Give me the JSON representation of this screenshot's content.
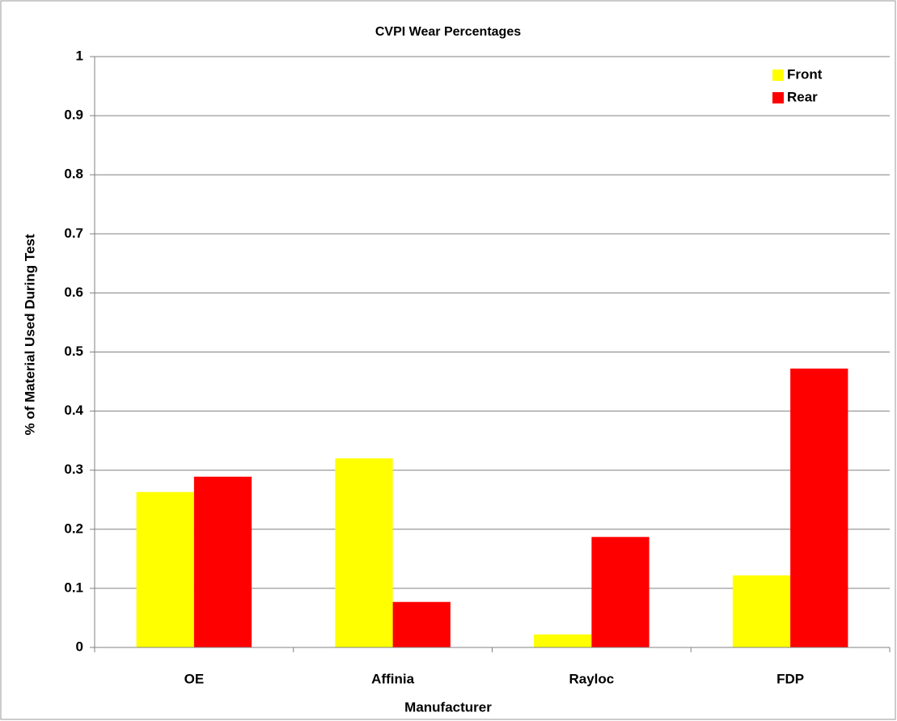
{
  "chart_data": {
    "type": "bar",
    "title": "CVPI Wear Percentages",
    "x_label": "Manufacturer",
    "y_label": "% of Material Used During Test",
    "categories": [
      "OE",
      "Affinia",
      "Rayloc",
      "FDP"
    ],
    "series": [
      {
        "name": "Front",
        "color": "#ffff00",
        "values": [
          0.263,
          0.32,
          0.022,
          0.122
        ]
      },
      {
        "name": "Rear",
        "color": "#ff0000",
        "values": [
          0.289,
          0.077,
          0.187,
          0.472
        ]
      }
    ],
    "ylim": [
      0,
      1
    ],
    "yticks": [
      0,
      0.1,
      0.2,
      0.3,
      0.4,
      0.5,
      0.6,
      0.7,
      0.8,
      0.9,
      1
    ],
    "grid": true,
    "legend": "top-right"
  }
}
